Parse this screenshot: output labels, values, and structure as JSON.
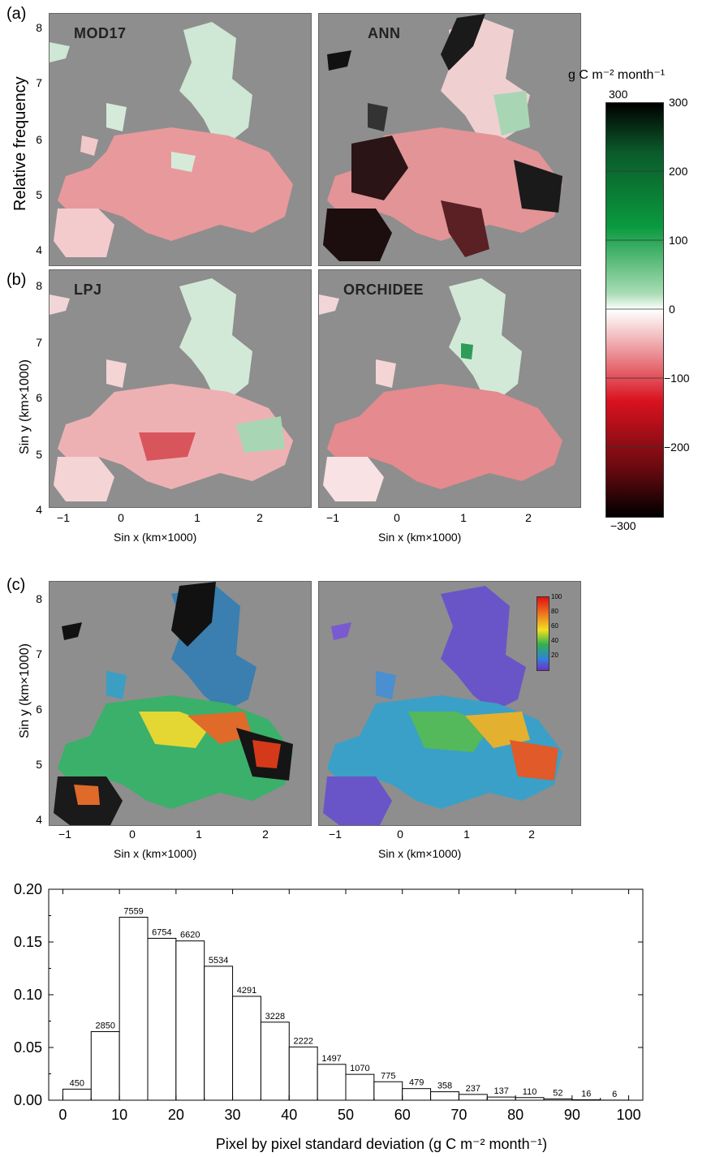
{
  "panels": {
    "a_label": "(a)",
    "b_label": "(b)",
    "c_label": "(c)"
  },
  "maps": {
    "titles": [
      "MOD17",
      "ANN",
      "LPJ",
      "ORCHIDEE"
    ],
    "y_ticks": [
      "8",
      "7",
      "6",
      "5",
      "4"
    ],
    "x_ticks": [
      "−1",
      "0",
      "1",
      "2"
    ],
    "ylabel_a": "Relative frequency",
    "ylabel_sin_y": "Sin y (km×1000)",
    "xlabel_sin_x": "Sin x (km×1000)",
    "colors": {
      "background": "#8e8e8e"
    }
  },
  "colorbar": {
    "unit": "g C m⁻² month⁻¹",
    "top_label": "300",
    "bottom_label": "−300",
    "ticks": [
      "300",
      "200",
      "100",
      "0",
      "−100",
      "−200"
    ],
    "colors": {
      "max": "#000000",
      "green": "#0a9a3e",
      "zero": "#ffffff",
      "red": "#d9121f",
      "min": "#000000"
    }
  },
  "inset_colorbar": {
    "ticks": [
      "100",
      "80",
      "60",
      "40",
      "20"
    ]
  },
  "chart_data": {
    "type": "bar",
    "xlabel": "Pixel by pixel standard deviation (g C m⁻² month⁻¹)",
    "ylabel": "",
    "xlim": [
      -2.5,
      102.5
    ],
    "ylim": [
      0,
      0.2
    ],
    "xticks": [
      0,
      10,
      20,
      30,
      40,
      50,
      60,
      70,
      80,
      90,
      100
    ],
    "yticks": [
      0.0,
      0.05,
      0.1,
      0.15,
      0.2
    ],
    "ytick_labels": [
      "0.00",
      "0.05",
      "0.10",
      "0.15",
      "0.20"
    ],
    "bin_width": 5,
    "bin_starts": [
      0,
      5,
      10,
      15,
      20,
      25,
      30,
      35,
      40,
      45,
      50,
      55,
      60,
      65,
      70,
      75,
      80,
      85,
      90,
      95
    ],
    "values": [
      0.0105,
      0.065,
      0.1735,
      0.1535,
      0.151,
      0.127,
      0.0985,
      0.074,
      0.0505,
      0.034,
      0.0245,
      0.0175,
      0.011,
      0.008,
      0.0055,
      0.003,
      0.0025,
      0.0012,
      0.0004,
      0.0001
    ],
    "counts": [
      "450",
      "2850",
      "7559",
      "6754",
      "6620",
      "5534",
      "4291",
      "3228",
      "2222",
      "1497",
      "1070",
      "775",
      "479",
      "358",
      "237",
      "137",
      "110",
      "52",
      "16",
      "6"
    ]
  }
}
